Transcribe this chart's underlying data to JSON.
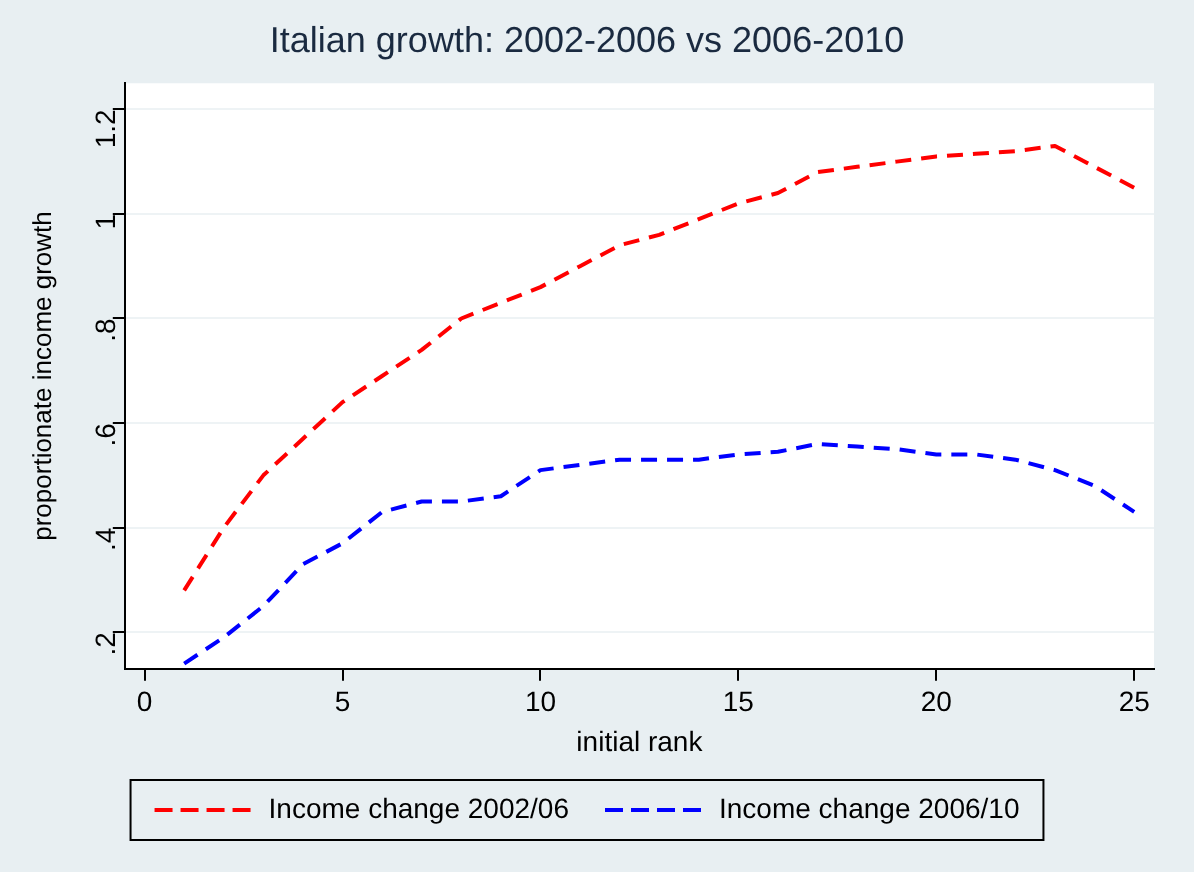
{
  "chart_data": {
    "type": "line",
    "title": "Italian growth: 2002-2006 vs 2006-2010",
    "xlabel": "initial rank",
    "ylabel": "proportionate income growth",
    "x": [
      1,
      2,
      3,
      4,
      5,
      6,
      7,
      8,
      9,
      10,
      11,
      12,
      13,
      14,
      15,
      16,
      17,
      18,
      19,
      20,
      21,
      22,
      23,
      24,
      25
    ],
    "series": [
      {
        "name": "Income change 2002/06",
        "color": "#ff0000",
        "line_style": "dashed",
        "values": [
          0.28,
          0.4,
          0.5,
          0.57,
          0.64,
          0.69,
          0.74,
          0.8,
          0.83,
          0.86,
          0.9,
          0.94,
          0.96,
          0.99,
          1.02,
          1.04,
          1.08,
          1.09,
          1.1,
          1.11,
          1.115,
          1.12,
          1.13,
          1.09,
          1.05
        ]
      },
      {
        "name": "Income change 2006/10",
        "color": "#0000ff",
        "line_style": "dashed",
        "values": [
          0.14,
          0.19,
          0.25,
          0.33,
          0.37,
          0.43,
          0.45,
          0.45,
          0.46,
          0.51,
          0.52,
          0.53,
          0.53,
          0.53,
          0.54,
          0.545,
          0.56,
          0.555,
          0.55,
          0.54,
          0.54,
          0.53,
          0.51,
          0.48,
          0.43
        ]
      }
    ],
    "xlim": [
      -0.5,
      25.5
    ],
    "xticks": [
      0,
      5,
      10,
      15,
      20,
      25
    ],
    "ylim": [
      0.13,
      1.25
    ],
    "yticks": [
      {
        "value": 0.2,
        "label": ".2"
      },
      {
        "value": 0.4,
        "label": ".4"
      },
      {
        "value": 0.6,
        "label": ".6"
      },
      {
        "value": 0.8,
        "label": ".8"
      },
      {
        "value": 1,
        "label": "1"
      },
      {
        "value": 1.2,
        "label": "1.2"
      }
    ],
    "grid": "y",
    "legend": "bottom",
    "marker": "none"
  }
}
